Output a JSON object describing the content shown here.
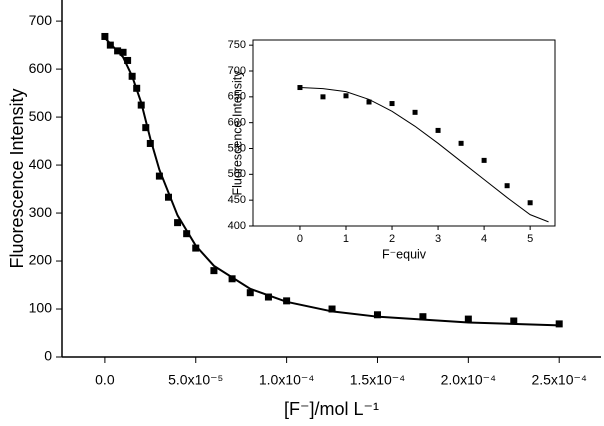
{
  "chart_data": [
    {
      "type": "scatter",
      "frame": false,
      "xlabel": "[F⁻]/mol L⁻¹",
      "ylabel": "Fluorescence Intensity",
      "xlim": [
        -2.36e-05,
        0.000273
      ],
      "ylim": [
        0,
        744
      ],
      "xticks": [
        {
          "value": 0,
          "label": "0.0"
        },
        {
          "value": 5e-05,
          "label": "5.0x10⁻⁵"
        },
        {
          "value": 0.0001,
          "label": "1.0x10⁻⁴"
        },
        {
          "value": 0.00015,
          "label": "1.5x10⁻⁴"
        },
        {
          "value": 0.0002,
          "label": "2.0x10⁻⁴"
        },
        {
          "value": 0.00025,
          "label": "2.5x10⁻⁴"
        }
      ],
      "yticks": [
        0,
        100,
        200,
        300,
        400,
        500,
        600,
        700
      ],
      "series": [
        {
          "style": "markers",
          "color": "#000000",
          "x": [
            0,
            3e-06,
            7e-06,
            1e-05,
            1.25e-05,
            1.5e-05,
            1.75e-05,
            2e-05,
            2.25e-05,
            2.5e-05,
            3e-05,
            3.5e-05,
            4e-05,
            4.5e-05,
            5e-05,
            6e-05,
            7e-05,
            8e-05,
            9e-05,
            0.0001,
            0.000125,
            0.00015,
            0.000175,
            0.0002,
            0.000225,
            0.00025
          ],
          "values": [
            668,
            650,
            638,
            635,
            618,
            585,
            560,
            525,
            478,
            445,
            377,
            333,
            280,
            257,
            227,
            180,
            163,
            134,
            125,
            117,
            100,
            88,
            84,
            79,
            75,
            69
          ]
        },
        {
          "style": "line",
          "color": "#000000",
          "x": [
            0,
            1e-05,
            1.5e-05,
            2e-05,
            2.5e-05,
            3e-05,
            4e-05,
            5e-05,
            6e-05,
            8e-05,
            0.0001,
            0.000125,
            0.00015,
            0.0002,
            0.00025
          ],
          "values": [
            665,
            625,
            585,
            530,
            455,
            390,
            295,
            232,
            190,
            142,
            115,
            95,
            84,
            72,
            66
          ]
        }
      ]
    },
    {
      "type": "scatter",
      "frame": true,
      "xlabel": "F⁻equiv",
      "ylabel": "Fluorescence Intensity",
      "xlim": [
        -1.02,
        5.54
      ],
      "ylim": [
        400,
        760
      ],
      "xticks": [
        0,
        1,
        2,
        3,
        4,
        5
      ],
      "yticks": [
        400,
        450,
        500,
        550,
        600,
        650,
        700,
        750
      ],
      "series": [
        {
          "style": "markers",
          "color": "#000000",
          "x": [
            0,
            0.5,
            1,
            1.5,
            2,
            2.5,
            3,
            3.5,
            4,
            4.5,
            5
          ],
          "values": [
            668,
            650,
            652,
            640,
            637,
            620,
            585,
            560,
            527,
            478,
            445
          ]
        },
        {
          "style": "line",
          "color": "#000000",
          "x": [
            0,
            0.5,
            1,
            1.5,
            2,
            2.5,
            3,
            3.5,
            4,
            4.5,
            5,
            5.4
          ],
          "values": [
            668,
            666,
            660,
            645,
            622,
            593,
            560,
            525,
            490,
            455,
            422,
            408
          ]
        }
      ]
    }
  ]
}
